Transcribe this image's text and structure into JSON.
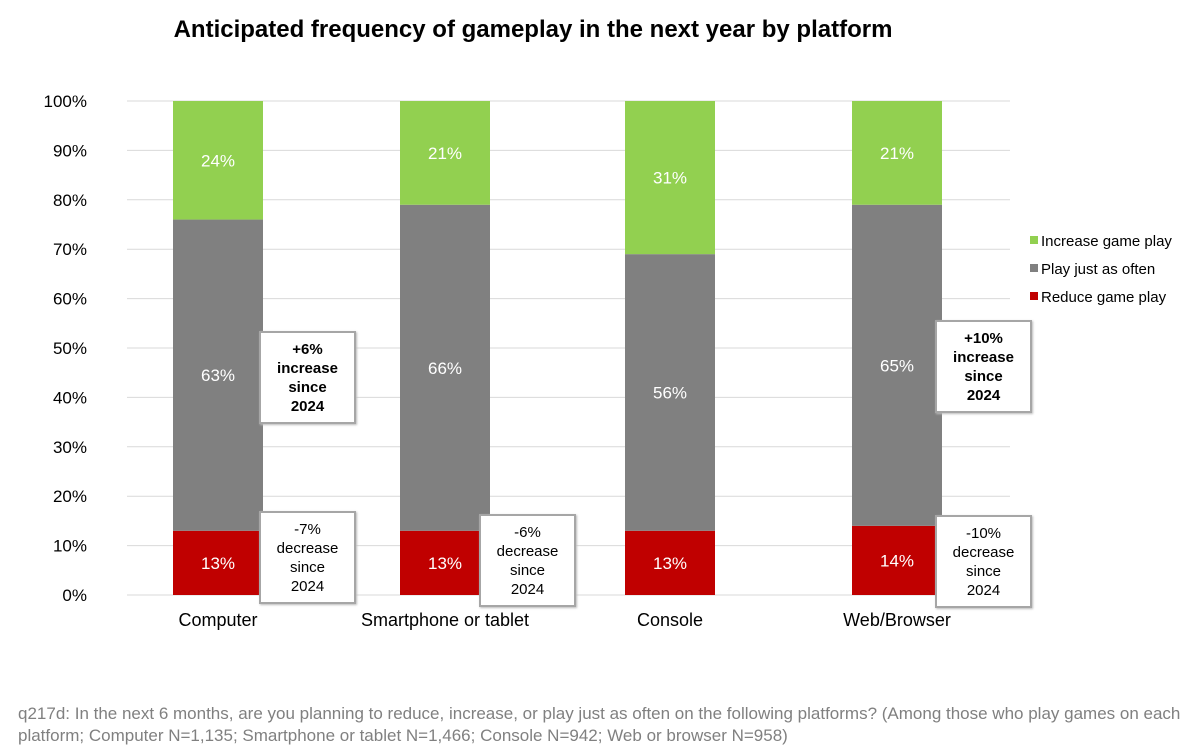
{
  "chart_data": {
    "type": "bar",
    "stacked": true,
    "title": "Anticipated frequency of gameplay in the next year by platform",
    "xlabel": "",
    "ylabel": "",
    "ylim": [
      0,
      100
    ],
    "yticks": [
      "0%",
      "10%",
      "20%",
      "30%",
      "40%",
      "50%",
      "60%",
      "70%",
      "80%",
      "90%",
      "100%"
    ],
    "grid": true,
    "legend_position": "right",
    "categories": [
      "Computer",
      "Smartphone or tablet",
      "Console",
      "Web/Browser"
    ],
    "series": [
      {
        "name": "Reduce game play",
        "color": "#c00000",
        "values": [
          13,
          13,
          13,
          14
        ],
        "labels": [
          "13%",
          "13%",
          "13%",
          "14%"
        ]
      },
      {
        "name": "Play just as often",
        "color": "#808080",
        "values": [
          63,
          66,
          56,
          65
        ],
        "labels": [
          "63%",
          "66%",
          "56%",
          "65%"
        ]
      },
      {
        "name": "Increase game play",
        "color": "#92d050",
        "values": [
          24,
          21,
          31,
          21
        ],
        "labels": [
          "24%",
          "21%",
          "31%",
          "21%"
        ]
      }
    ],
    "legend_order": [
      "Increase game play",
      "Play just as often",
      "Reduce game play"
    ],
    "annotations": [
      {
        "category": "Computer",
        "series": "Play just as often",
        "lines": [
          "+6%",
          "increase",
          "since",
          "2024"
        ],
        "bold": true
      },
      {
        "category": "Computer",
        "series": "Reduce game play",
        "lines": [
          "-7%",
          "decrease",
          "since",
          "2024"
        ],
        "bold": false
      },
      {
        "category": "Smartphone or tablet",
        "series": "Reduce game play",
        "lines": [
          "-6%",
          "decrease",
          "since",
          "2024"
        ],
        "bold": false
      },
      {
        "category": "Web/Browser",
        "series": "Play just as often",
        "lines": [
          "+10%",
          "increase",
          "since",
          "2024"
        ],
        "bold": true
      },
      {
        "category": "Web/Browser",
        "series": "Reduce game play",
        "lines": [
          "-10%",
          "decrease",
          "since",
          "2024"
        ],
        "bold": false
      }
    ]
  },
  "footnote": "q217d: In the next 6 months, are you planning to reduce, increase, or play just as often on the following platforms? (Among those who play games on each platform; Computer N=1,135; Smartphone or tablet N=1,466; Console N=942; Web or browser N=958)"
}
